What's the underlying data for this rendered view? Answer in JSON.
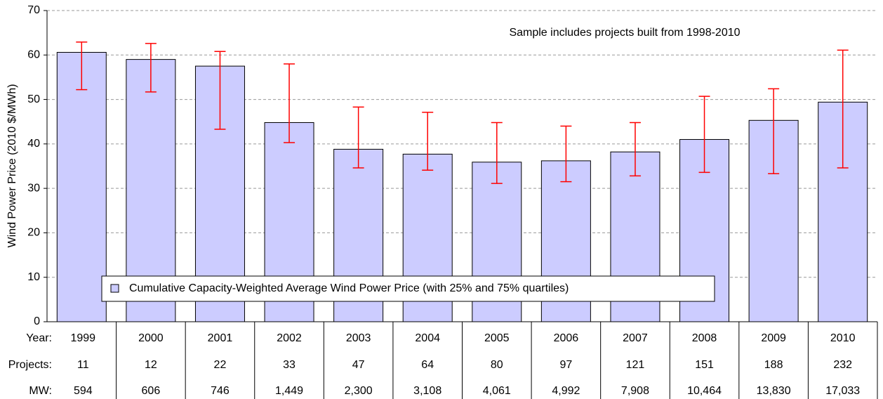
{
  "chart_data": {
    "type": "bar",
    "ylabel": "Wind Power Price (2010 $/MWh)",
    "annotation": "Sample includes projects built from 1998-2010",
    "categories": [
      "1999",
      "2000",
      "2001",
      "2002",
      "2003",
      "2004",
      "2005",
      "2006",
      "2007",
      "2008",
      "2009",
      "2010"
    ],
    "series": [
      {
        "name": "Cumulative Capacity-Weighted Average Wind Power Price (with 25% and 75% quartiles)",
        "color": "#ccccff",
        "error_color": "#ff0000",
        "values": [
          60.6,
          59.0,
          57.5,
          44.8,
          38.8,
          37.7,
          35.9,
          36.2,
          38.2,
          41.0,
          45.3,
          49.4
        ],
        "low": [
          52.2,
          51.7,
          43.3,
          40.3,
          34.6,
          34.1,
          31.1,
          31.5,
          32.8,
          33.6,
          33.3,
          34.6
        ],
        "high": [
          62.9,
          62.6,
          60.8,
          58.0,
          48.3,
          47.1,
          44.8,
          44.0,
          44.8,
          50.7,
          52.4,
          61.1
        ]
      }
    ],
    "ylim": [
      0,
      70
    ],
    "yticks": [
      0,
      10,
      20,
      30,
      40,
      50,
      60,
      70
    ],
    "grid": true,
    "table": {
      "row_labels": [
        "Year:",
        "Projects:",
        "MW:"
      ],
      "projects": [
        11,
        12,
        22,
        33,
        47,
        64,
        80,
        97,
        121,
        151,
        188,
        232
      ],
      "mw": [
        "594",
        "606",
        "746",
        "1,449",
        "2,300",
        "3,108",
        "4,061",
        "4,992",
        "7,908",
        "10,464",
        "13,830",
        "17,033"
      ]
    }
  }
}
